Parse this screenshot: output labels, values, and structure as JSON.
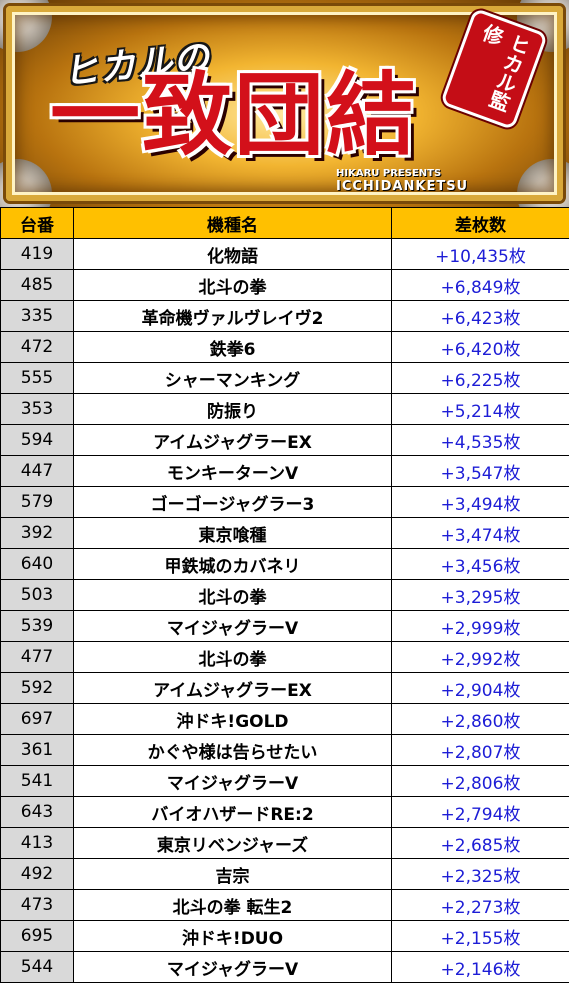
{
  "banner": {
    "subtitle": "ヒカルの",
    "title": "一致団結",
    "badge": "ヒカル監修",
    "caption_small": "HIKARU PRESENTS",
    "caption_big": "ICCHIDANKETSU"
  },
  "table": {
    "headers": [
      "台番",
      "機種名",
      "差枚数"
    ],
    "rows": [
      [
        "419",
        "化物語",
        "+10,435枚"
      ],
      [
        "485",
        "北斗の拳",
        "+6,849枚"
      ],
      [
        "335",
        "革命機ヴァルヴレイヴ2",
        "+6,423枚"
      ],
      [
        "472",
        "鉄拳6",
        "+6,420枚"
      ],
      [
        "555",
        "シャーマンキング",
        "+6,225枚"
      ],
      [
        "353",
        "防振り",
        "+5,214枚"
      ],
      [
        "594",
        "アイムジャグラーEX",
        "+4,535枚"
      ],
      [
        "447",
        "モンキーターンV",
        "+3,547枚"
      ],
      [
        "579",
        "ゴーゴージャグラー3",
        "+3,494枚"
      ],
      [
        "392",
        "東京喰種",
        "+3,474枚"
      ],
      [
        "640",
        "甲鉄城のカバネリ",
        "+3,456枚"
      ],
      [
        "503",
        "北斗の拳",
        "+3,295枚"
      ],
      [
        "539",
        "マイジャグラーV",
        "+2,999枚"
      ],
      [
        "477",
        "北斗の拳",
        "+2,992枚"
      ],
      [
        "592",
        "アイムジャグラーEX",
        "+2,904枚"
      ],
      [
        "697",
        "沖ドキ!GOLD",
        "+2,860枚"
      ],
      [
        "361",
        "かぐや様は告らせたい",
        "+2,807枚"
      ],
      [
        "541",
        "マイジャグラーV",
        "+2,806枚"
      ],
      [
        "643",
        "バイオハザードRE:2",
        "+2,794枚"
      ],
      [
        "413",
        "東京リベンジャーズ",
        "+2,685枚"
      ],
      [
        "492",
        "吉宗",
        "+2,325枚"
      ],
      [
        "473",
        "北斗の拳 転生2",
        "+2,273枚"
      ],
      [
        "695",
        "沖ドキ!DUO",
        "+2,155枚"
      ],
      [
        "544",
        "マイジャグラーV",
        "+2,146枚"
      ]
    ]
  },
  "colors": {
    "header_bg": "#ffc000",
    "number_bg": "#d9d9d9",
    "diff_text": "#1d1dd6",
    "title_red": "#d3101a"
  }
}
